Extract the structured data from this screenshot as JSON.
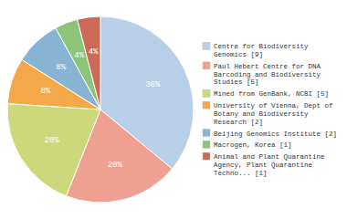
{
  "chart_data": {
    "type": "pie",
    "categories": [
      "Centre for Biodiversity\nGenomics [9]",
      "Paul Hebert Centre for DNA\nBarcoding and Biodiversity\nStudies [5]",
      "Mined from GenBank, NCBI [5]",
      "University of Vienna, Dept of\nBotany and Biodiversity\nResearch [2]",
      "Beijing Genomics Institute [2]",
      "Macrogen, Korea [1]",
      "Animal and Plant Quarantine\nAgency, Plant Quarantine\nTechno... [1]"
    ],
    "values": [
      36,
      20,
      20,
      8,
      8,
      4,
      4
    ],
    "value_labels": [
      "36%",
      "20%",
      "20%",
      "8%",
      "8%",
      "4%",
      "4%"
    ],
    "colors": [
      "#b8cfe8",
      "#f0a090",
      "#ccd87a",
      "#f5a84a",
      "#88b4d4",
      "#8ec47a",
      "#cc6a58"
    ],
    "data_labels": true,
    "legend": "right"
  }
}
